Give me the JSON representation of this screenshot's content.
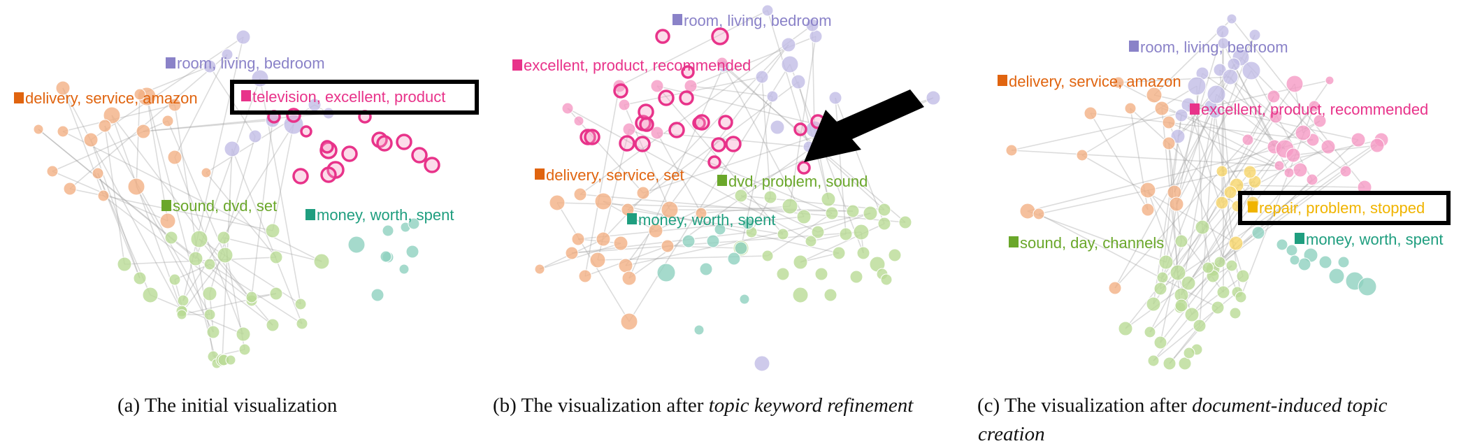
{
  "colors": {
    "orange": "#e0640f",
    "orange_node": "#f3b085",
    "purple": "#8a82c8",
    "purple_node": "#c2bde6",
    "pink": "#e8338a",
    "pink_node": "#f59ac4",
    "green": "#6aa72a",
    "green_node": "#b9db95",
    "teal": "#1f9e7f",
    "teal_node": "#8fd1bf",
    "yellow": "#f0b400",
    "yellow_node": "#f7d66a"
  },
  "panels": [
    {
      "id": "a",
      "caption_prefix": "(a) The initial visualization",
      "caption_italic": "",
      "caption_line2": "",
      "topics": [
        {
          "label": "room, living, bedroom",
          "color": "purple"
        },
        {
          "label": "delivery, service, amazon",
          "color": "orange"
        },
        {
          "label": "television, excellent, product",
          "color": "pink",
          "highlight": true
        },
        {
          "label": "sound, dvd, set",
          "color": "green"
        },
        {
          "label": "money, worth, spent",
          "color": "teal"
        }
      ]
    },
    {
      "id": "b",
      "caption_prefix": "(b) The visualization after ",
      "caption_italic": "topic keyword refinement",
      "caption_line2": "",
      "topics": [
        {
          "label": "room, living, bedroom",
          "color": "purple"
        },
        {
          "label": "excellent, product, recommended",
          "color": "pink"
        },
        {
          "label": "delivery, service, set",
          "color": "orange"
        },
        {
          "label": "dvd, problem, sound",
          "color": "green"
        },
        {
          "label": "money, worth, spent",
          "color": "teal"
        }
      ]
    },
    {
      "id": "c",
      "caption_prefix": "(c)  The  visualization  after  ",
      "caption_italic": "document-induced  topic",
      "caption_line2": "creation",
      "topics": [
        {
          "label": "room, living, bedroom",
          "color": "purple"
        },
        {
          "label": "delivery, service, amazon",
          "color": "orange"
        },
        {
          "label": "excellent, product, recommended",
          "color": "pink"
        },
        {
          "label": "repair, problem, stopped",
          "color": "yellow",
          "highlight": true
        },
        {
          "label": "sound, day, channels",
          "color": "green"
        },
        {
          "label": "money, worth, spent",
          "color": "teal"
        }
      ]
    }
  ]
}
